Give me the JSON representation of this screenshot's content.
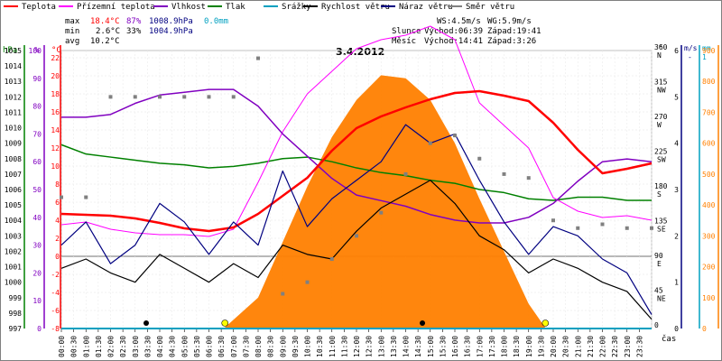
{
  "chart_data": {
    "type": "line",
    "title": "3.4.2012",
    "legend": [
      {
        "name": "Teplota",
        "color": "#ff0000"
      },
      {
        "name": "Přízemní teplota",
        "color": "#ff00ff"
      },
      {
        "name": "Vlhkost",
        "color": "#8000c0"
      },
      {
        "name": "Tlak",
        "color": "#008000"
      },
      {
        "name": "Srážky",
        "color": "#00a0c0"
      },
      {
        "name": "Rychlost větru",
        "color": "#000000"
      },
      {
        "name": "Náraz větru",
        "color": "#000080"
      },
      {
        "name": "Směr větru",
        "color": "#808080"
      }
    ],
    "stats": {
      "max": {
        "label": "max",
        "temp": "18.4°C",
        "hum": "87%",
        "press": "1008.9hPa",
        "rain": "0.0mm"
      },
      "min": {
        "label": "min",
        "temp": "2.6°C",
        "hum": "33%",
        "press": "1004.9hPa"
      },
      "avg": {
        "label": "avg",
        "temp": "10.2°C"
      }
    },
    "wind_info": {
      "ws": "WS:4.5m/s",
      "wg": "WG:5.9m/s"
    },
    "sun": {
      "label": "Slunce",
      "rise": "Východ:06:39",
      "set": "Západ:19:41"
    },
    "moon": {
      "label": "Měsíc",
      "rise": "Východ:14:41",
      "set": "Západ:3:26"
    },
    "axes": {
      "hpa": {
        "label": "hPa",
        "ticks": [
          "1015",
          "1014",
          "1013",
          "1012",
          "1011",
          "1010",
          "1009",
          "1008",
          "1007",
          "1006",
          "1005",
          "1004",
          "1003",
          "1002",
          "1001",
          "1000",
          "999",
          "998",
          "997"
        ],
        "color": "#008000"
      },
      "pct": {
        "label": "%",
        "ticks": [
          "100",
          "90",
          "80",
          "70",
          "60",
          "50",
          "40",
          "30",
          "20",
          "10",
          "0"
        ],
        "color": "#8000c0"
      },
      "temp": {
        "label": "°C",
        "ticks": [
          "22",
          "20",
          "18",
          "16",
          "14",
          "12",
          "10",
          "8",
          "6",
          "4",
          "2",
          "0",
          "-2",
          "-4",
          "-6",
          "-8"
        ],
        "color": "#ff0000"
      },
      "dir": {
        "label": "°",
        "ticks": [
          "360",
          "315",
          "270",
          "225",
          "180",
          "135",
          "90",
          "45",
          "0"
        ],
        "labels": [
          "N",
          "NW",
          "W",
          "SW",
          "S",
          "SE",
          "E",
          "NE",
          ""
        ]
      },
      "ms": {
        "label": "m/s",
        "ticks": [
          "6",
          "5",
          "4",
          "3",
          "2",
          "1",
          "0"
        ]
      },
      "mm": {
        "label": "mm",
        "ticks": [
          "1"
        ]
      },
      "wm2": {
        "ticks": [
          "900",
          "800",
          "700",
          "600",
          "500",
          "400",
          "300",
          "200",
          "100",
          "0"
        ]
      },
      "time": {
        "label": "čas",
        "ticks": [
          "00:00",
          "00:30",
          "01:00",
          "01:30",
          "02:00",
          "02:30",
          "03:00",
          "03:30",
          "04:00",
          "04:30",
          "05:00",
          "05:30",
          "06:00",
          "06:30",
          "07:00",
          "07:30",
          "08:00",
          "08:30",
          "09:00",
          "09:30",
          "10:00",
          "10:30",
          "11:00",
          "11:30",
          "12:00",
          "12:30",
          "13:00",
          "13:30",
          "14:00",
          "14:30",
          "15:00",
          "15:30",
          "16:00",
          "16:30",
          "17:00",
          "17:30",
          "18:00",
          "18:30",
          "19:00",
          "19:30",
          "20:00",
          "20:30",
          "21:00",
          "21:30",
          "22:00",
          "22:30",
          "23:00",
          "23:30"
        ]
      }
    },
    "series": [
      {
        "name": "Teplota",
        "hours": [
          0,
          1,
          2,
          3,
          4,
          5,
          6,
          7,
          8,
          9,
          10,
          11,
          12,
          13,
          14,
          15,
          16,
          17,
          18,
          19,
          20,
          21,
          22,
          23,
          24
        ],
        "values": [
          4.7,
          4.6,
          4.5,
          4.2,
          3.7,
          3.1,
          2.8,
          3.2,
          4.7,
          6.7,
          8.7,
          11.7,
          14.2,
          15.5,
          16.5,
          17.4,
          18.1,
          18.3,
          17.8,
          17.2,
          14.8,
          11.8,
          9.2,
          9.7,
          10.3
        ]
      },
      {
        "name": "Přízemní teplota",
        "hours": [
          0,
          1,
          2,
          3,
          4,
          5,
          6,
          7,
          8,
          9,
          10,
          11,
          12,
          13,
          14,
          15,
          16,
          17,
          18,
          19,
          20,
          21,
          22,
          23,
          24
        ],
        "values": [
          3.5,
          3.8,
          3.0,
          2.6,
          2.4,
          2.4,
          2.2,
          3.0,
          8.2,
          13.8,
          18.0,
          20.5,
          23.0,
          24.0,
          24.5,
          25.5,
          24.0,
          17.0,
          14.5,
          12.0,
          6.5,
          5.0,
          4.3,
          4.5,
          4.0
        ]
      },
      {
        "name": "Vlhkost",
        "hours": [
          0,
          1,
          2,
          3,
          4,
          5,
          6,
          7,
          8,
          9,
          10,
          11,
          12,
          13,
          14,
          15,
          16,
          17,
          18,
          19,
          20,
          21,
          22,
          23,
          24
        ],
        "values": [
          76,
          76,
          77,
          81,
          84,
          85,
          86,
          86,
          80,
          70,
          62,
          54,
          48,
          46,
          44,
          41,
          39,
          38,
          38,
          40,
          45,
          53,
          60,
          61,
          60
        ]
      },
      {
        "name": "Tlak",
        "hours": [
          0,
          1,
          2,
          3,
          4,
          5,
          6,
          7,
          8,
          9,
          10,
          11,
          12,
          13,
          14,
          15,
          16,
          17,
          18,
          19,
          20,
          21,
          22,
          23,
          24
        ],
        "values": [
          1008.9,
          1008.3,
          1008.1,
          1007.9,
          1007.7,
          1007.6,
          1007.4,
          1007.5,
          1007.7,
          1008.0,
          1008.1,
          1007.8,
          1007.4,
          1007.1,
          1006.9,
          1006.6,
          1006.4,
          1006.0,
          1005.8,
          1005.4,
          1005.3,
          1005.5,
          1005.5,
          1005.3,
          1005.3
        ]
      },
      {
        "name": "Rychlost větru",
        "hours": [
          0,
          1,
          2,
          3,
          4,
          5,
          6,
          7,
          8,
          9,
          10,
          11,
          12,
          13,
          14,
          15,
          16,
          17,
          18,
          19,
          20,
          21,
          22,
          23,
          24
        ],
        "values": [
          1.3,
          1.5,
          1.2,
          1.0,
          1.6,
          1.3,
          1.0,
          1.4,
          1.1,
          1.8,
          1.6,
          1.5,
          2.1,
          2.6,
          2.9,
          3.2,
          2.7,
          2.0,
          1.7,
          1.2,
          1.5,
          1.3,
          1.0,
          0.8,
          0.2
        ]
      },
      {
        "name": "Náraz větru",
        "hours": [
          0,
          1,
          2,
          3,
          4,
          5,
          6,
          7,
          8,
          9,
          10,
          11,
          12,
          13,
          14,
          15,
          16,
          17,
          18,
          19,
          20,
          21,
          22,
          23,
          24
        ],
        "values": [
          1.8,
          2.3,
          1.4,
          1.8,
          2.7,
          2.3,
          1.6,
          2.3,
          1.8,
          3.4,
          2.2,
          2.8,
          3.2,
          3.6,
          4.4,
          4.0,
          4.2,
          3.2,
          2.3,
          1.6,
          2.2,
          2.0,
          1.5,
          1.2,
          0.3
        ]
      },
      {
        "name": "Směr větru",
        "hours": [
          0,
          1,
          2,
          3,
          4,
          5,
          6,
          7,
          8,
          9,
          10,
          11,
          12,
          13,
          14,
          15,
          16,
          17,
          18,
          19,
          20,
          21,
          22,
          23,
          24
        ],
        "values": [
          170,
          170,
          300,
          300,
          300,
          300,
          300,
          300,
          350,
          45,
          60,
          90,
          120,
          150,
          200,
          240,
          250,
          220,
          200,
          195,
          140,
          130,
          135,
          130,
          130
        ]
      },
      {
        "name": "Solar",
        "hours": [
          6.6,
          8,
          9,
          10,
          11,
          12,
          13,
          14,
          15,
          16,
          17,
          18,
          19,
          19.7
        ],
        "values": [
          0,
          100,
          280,
          460,
          620,
          740,
          820,
          810,
          740,
          600,
          420,
          250,
          80,
          0
        ]
      }
    ]
  }
}
